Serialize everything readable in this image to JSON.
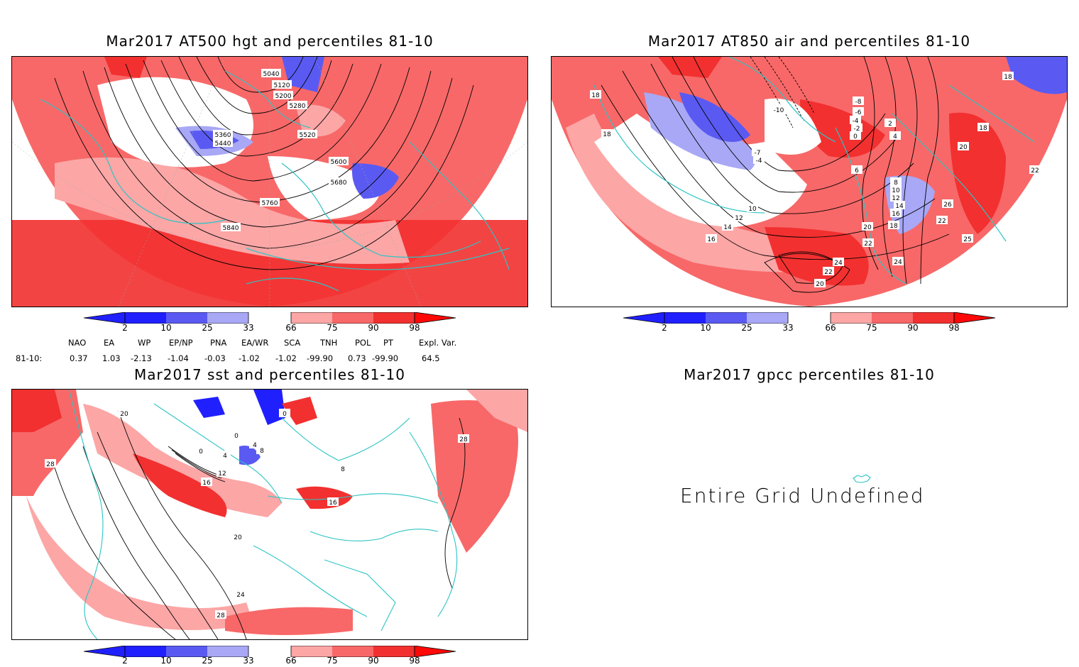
{
  "colors": {
    "blue_dark": "#2020ff",
    "blue_mid": "#5a5af2",
    "blue_light": "#a8a8f6",
    "red_light": "#fca6a6",
    "red_mid": "#f86868",
    "red_dark": "#f23030",
    "red_max": "#ff0808",
    "coast": "#2ec4c4"
  },
  "panels": [
    {
      "title": "Mar2017 AT500 hgt and percentiles 81-10",
      "contour_labels": [
        "5040",
        "5120",
        "5200",
        "5280",
        "5360",
        "5440",
        "5520",
        "5600",
        "5680",
        "5760",
        "5840"
      ]
    },
    {
      "title": "Mar2017 AT850 air and percentiles 81-10",
      "contour_labels": [
        "18",
        "18",
        "-8",
        "-6",
        "-4",
        "-2",
        "0",
        "2",
        "4",
        "-10",
        "-7",
        "-4",
        "6",
        "8",
        "10",
        "12",
        "14",
        "16",
        "18",
        "20",
        "22",
        "24",
        "24",
        "22",
        "20",
        "10",
        "12",
        "14",
        "16",
        "18",
        "20",
        "22",
        "26",
        "25",
        "22",
        "18",
        "20"
      ]
    },
    {
      "title": "Mar2017 sst and percentiles 81-10",
      "contour_labels": [
        "20",
        "28",
        "0",
        "0",
        "4",
        "8",
        "12",
        "16",
        "16",
        "20",
        "24",
        "28",
        "28",
        "4",
        "8",
        "0"
      ]
    },
    {
      "title": "Mar2017 gpcc percentiles 81-10",
      "message": "Entire Grid Undefined"
    }
  ],
  "colorbar": {
    "ticks": [
      "2",
      "10",
      "25",
      "33",
      "66",
      "75",
      "90",
      "98"
    ]
  },
  "indices": {
    "headers": [
      "NAO",
      "EA",
      "WP",
      "EP/NP",
      "PNA",
      "EA/WR",
      "SCA",
      "TNH",
      "POL",
      "PT",
      "Expl. Var."
    ],
    "row_label": "81-10:",
    "values": [
      "0.37",
      "1.03",
      "-2.13",
      "-1.04",
      "-0.03",
      "-1.02",
      "-1.02",
      "-99.90",
      "0.73",
      "-99.90",
      "64.5"
    ]
  }
}
